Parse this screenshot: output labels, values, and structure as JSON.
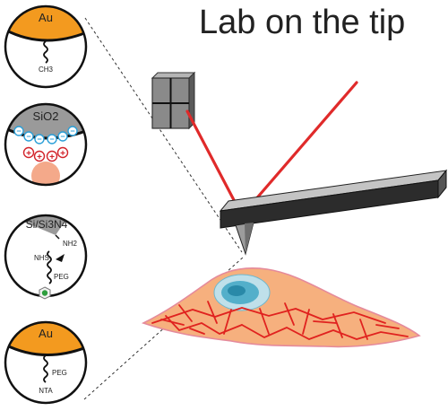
{
  "title": "Lab on the tip",
  "colors": {
    "gold": "#f39a1f",
    "laser": "#e02a2a",
    "cell": "#f6b07e",
    "nucleus": "#3fa6c4",
    "actin": "#e0221f",
    "tip_gray": "#8f8f8f",
    "charge_blue": "#2b9fd8",
    "charge_red": "#d2232a",
    "particle": "#f4a98a"
  },
  "panels": [
    {
      "substrate": "Au",
      "linker": "CH3"
    },
    {
      "substrate": "SiO2",
      "negative_charges": "−",
      "positive_charges": "+"
    },
    {
      "substrate": "Si/Si3N4",
      "amine": "NH2",
      "linker": "NHS",
      "spacer": "PEG"
    },
    {
      "substrate": "Au",
      "spacer": "PEG",
      "terminal_group": "NTA"
    }
  ],
  "icons": [
    "photodetector-icon",
    "cantilever-icon",
    "cell-icon"
  ]
}
